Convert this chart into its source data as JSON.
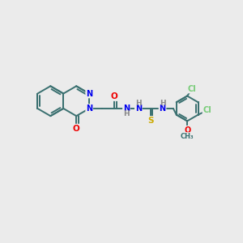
{
  "bg_color": "#ebebeb",
  "bond_color": "#3a7070",
  "bond_width": 1.4,
  "atoms": {
    "N_blue": "#0000ee",
    "O_red": "#ee0000",
    "S_yellow": "#ccaa00",
    "Cl_green": "#77cc77",
    "H_gray": "#888888"
  },
  "figsize": [
    3.0,
    3.0
  ],
  "dpi": 100,
  "xlim": [
    0,
    10
  ],
  "ylim": [
    0,
    10
  ]
}
